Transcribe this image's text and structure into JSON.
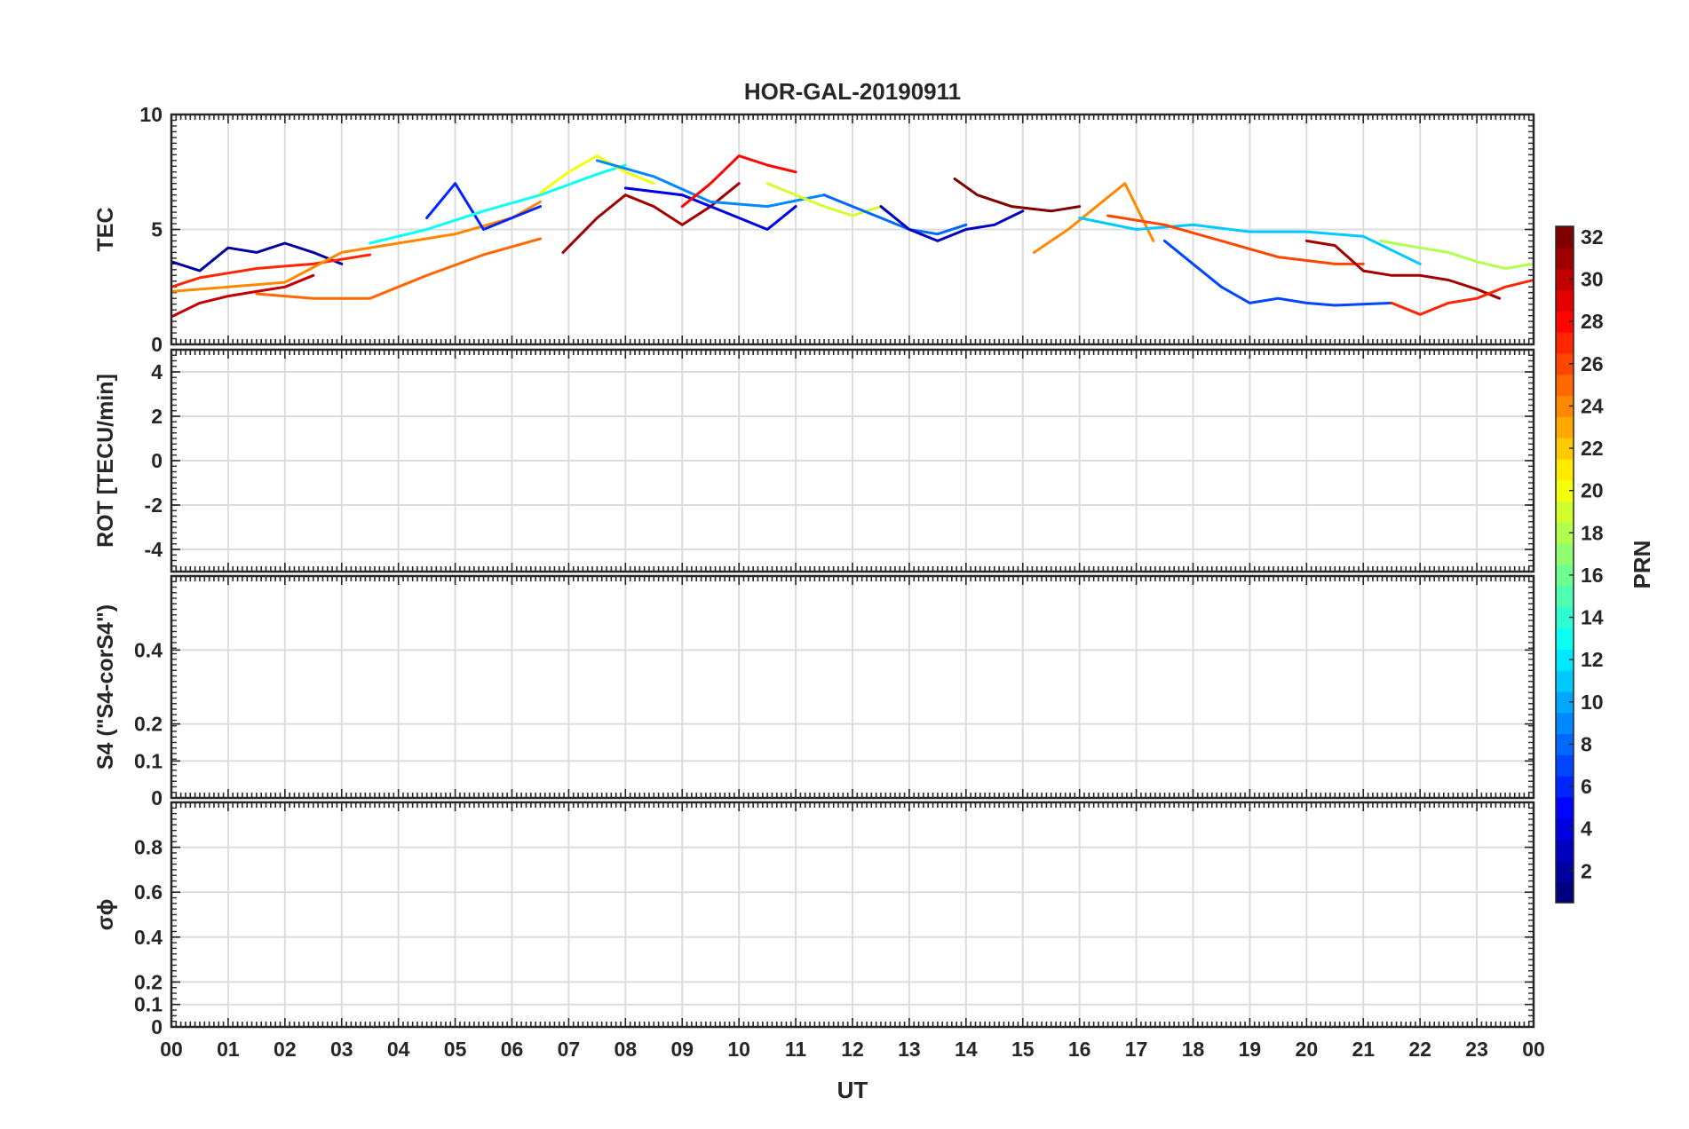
{
  "title": "HOR-GAL-20190911",
  "chart_data": {
    "type": "line",
    "title": "HOR-GAL-20190911",
    "xlabel": "UT",
    "x_ticks": [
      "00",
      "01",
      "02",
      "03",
      "04",
      "05",
      "06",
      "07",
      "08",
      "09",
      "10",
      "11",
      "12",
      "13",
      "14",
      "15",
      "16",
      "17",
      "18",
      "19",
      "20",
      "21",
      "22",
      "23",
      "00"
    ],
    "xlim": [
      0,
      24
    ],
    "grid": true,
    "colorbar": {
      "label": "PRN",
      "range": [
        1,
        32
      ],
      "ticks": [
        "2",
        "4",
        "6",
        "8",
        "10",
        "12",
        "14",
        "16",
        "18",
        "20",
        "22",
        "24",
        "26",
        "28",
        "30",
        "32"
      ],
      "colormap": "jet"
    },
    "panels": [
      {
        "ylabel": "TEC",
        "ylim": [
          0,
          10
        ],
        "yticks": [
          "0",
          "5",
          "10"
        ],
        "series": [
          {
            "prn": 2,
            "x": [
              0,
              0.5,
              1,
              1.5,
              2,
              2.5,
              3
            ],
            "y": [
              3.6,
              3.2,
              4.2,
              4.0,
              4.4,
              4.0,
              3.5
            ]
          },
          {
            "prn": 27,
            "x": [
              0,
              0.5,
              1,
              1.5,
              2,
              2.5,
              3,
              3.5
            ],
            "y": [
              2.5,
              2.9,
              3.1,
              3.3,
              3.4,
              3.5,
              3.7,
              3.9
            ]
          },
          {
            "prn": 30,
            "x": [
              0,
              0.5,
              1,
              1.5,
              2,
              2.5
            ],
            "y": [
              1.2,
              1.8,
              2.1,
              2.3,
              2.5,
              3.0
            ]
          },
          {
            "prn": 24,
            "x": [
              0,
              1,
              2,
              3,
              4,
              5,
              6,
              6.5
            ],
            "y": [
              2.3,
              2.5,
              2.7,
              4.0,
              4.4,
              4.8,
              5.5,
              6.2
            ]
          },
          {
            "prn": 25,
            "x": [
              1.5,
              2.5,
              3.5,
              4.5,
              5.5,
              6.5
            ],
            "y": [
              2.2,
              2.0,
              2.0,
              3.0,
              3.9,
              4.6
            ]
          },
          {
            "prn": 6,
            "x": [
              4.5,
              5,
              5.5,
              6,
              6.5
            ],
            "y": [
              5.5,
              7.0,
              5.0,
              5.5,
              6.0
            ]
          },
          {
            "prn": 13,
            "x": [
              3.5,
              4.5,
              5.5,
              6.5,
              7.5,
              8
            ],
            "y": [
              4.4,
              5.0,
              5.8,
              6.5,
              7.4,
              7.8
            ]
          },
          {
            "prn": 20,
            "x": [
              6.5,
              7,
              7.5,
              8,
              8.5
            ],
            "y": [
              6.6,
              7.5,
              8.2,
              7.5,
              7.0
            ]
          },
          {
            "prn": 31,
            "x": [
              6.9,
              7.5,
              8,
              8.5,
              9,
              9.5,
              10
            ],
            "y": [
              4.0,
              5.5,
              6.5,
              6.0,
              5.2,
              6.0,
              7.0
            ]
          },
          {
            "prn": 9,
            "x": [
              7.5,
              8.5,
              9.5,
              10.5,
              11.5
            ],
            "y": [
              8.0,
              7.3,
              6.2,
              6.0,
              6.5
            ]
          },
          {
            "prn": 4,
            "x": [
              8,
              9,
              10,
              10.5,
              11
            ],
            "y": [
              6.8,
              6.5,
              5.5,
              5.0,
              6.0
            ]
          },
          {
            "prn": 28,
            "x": [
              9,
              9.5,
              10,
              10.5,
              11
            ],
            "y": [
              6.0,
              7.0,
              8.2,
              7.8,
              7.5
            ]
          },
          {
            "prn": 19,
            "x": [
              10.5,
              11,
              11.5,
              12,
              12.5
            ],
            "y": [
              7.0,
              6.5,
              6.0,
              5.6,
              6.0
            ]
          },
          {
            "prn": 8,
            "x": [
              11.5,
              12,
              12.5,
              13,
              13.5,
              14
            ],
            "y": [
              6.5,
              6.0,
              5.5,
              5.0,
              4.8,
              5.2
            ]
          },
          {
            "prn": 3,
            "x": [
              12.5,
              13,
              13.5,
              14,
              14.5,
              15
            ],
            "y": [
              6.0,
              5.0,
              4.5,
              5.0,
              5.2,
              5.8
            ]
          },
          {
            "prn": 32,
            "x": [
              13.8,
              14.2,
              14.8,
              15.5,
              16
            ],
            "y": [
              7.2,
              6.5,
              6.0,
              5.8,
              6.0
            ]
          },
          {
            "prn": 24,
            "x": [
              15.2,
              15.8,
              16.3,
              16.8,
              17.3
            ],
            "y": [
              4.0,
              5.0,
              6.0,
              7.0,
              4.5
            ]
          },
          {
            "prn": 11,
            "x": [
              16,
              17,
              18,
              19,
              20,
              21,
              22
            ],
            "y": [
              5.5,
              5.0,
              5.2,
              4.9,
              4.9,
              4.7,
              3.5
            ]
          },
          {
            "prn": 26,
            "x": [
              16.5,
              17.5,
              18.5,
              19.5,
              20.5,
              21
            ],
            "y": [
              5.6,
              5.2,
              4.5,
              3.8,
              3.5,
              3.5
            ]
          },
          {
            "prn": 7,
            "x": [
              17.5,
              18,
              18.5,
              19,
              19.5,
              20,
              20.5,
              21.5
            ],
            "y": [
              4.5,
              3.5,
              2.5,
              1.8,
              2.0,
              1.8,
              1.7,
              1.8
            ]
          },
          {
            "prn": 31,
            "x": [
              20,
              20.5,
              21,
              21.5,
              22,
              22.5,
              23,
              23.4
            ],
            "y": [
              4.5,
              4.3,
              3.2,
              3.0,
              3.0,
              2.8,
              2.4,
              2.0
            ]
          },
          {
            "prn": 18,
            "x": [
              21.3,
              22,
              22.5,
              23,
              23.5,
              24
            ],
            "y": [
              4.5,
              4.2,
              4.0,
              3.6,
              3.3,
              3.5
            ]
          },
          {
            "prn": 27,
            "x": [
              21.5,
              22,
              22.5,
              23,
              23.5,
              24
            ],
            "y": [
              1.8,
              1.3,
              1.8,
              2.0,
              2.5,
              2.8
            ]
          }
        ]
      },
      {
        "ylabel": "ROT [TECU/min]",
        "ylim": [
          -5,
          5
        ],
        "yticks": [
          "-4",
          "-2",
          "0",
          "2",
          "4"
        ]
      },
      {
        "ylabel": "S4 (\"S4-corS4\")",
        "ylim": [
          0,
          0.6
        ],
        "yticks": [
          "0",
          "0.1",
          "0.2",
          "0.4"
        ]
      },
      {
        "ylabel": "σϕ",
        "ylim": [
          0,
          1
        ],
        "yticks": [
          "0",
          "0.1",
          "0.2",
          "0.4",
          "0.6",
          "0.8"
        ]
      }
    ]
  }
}
